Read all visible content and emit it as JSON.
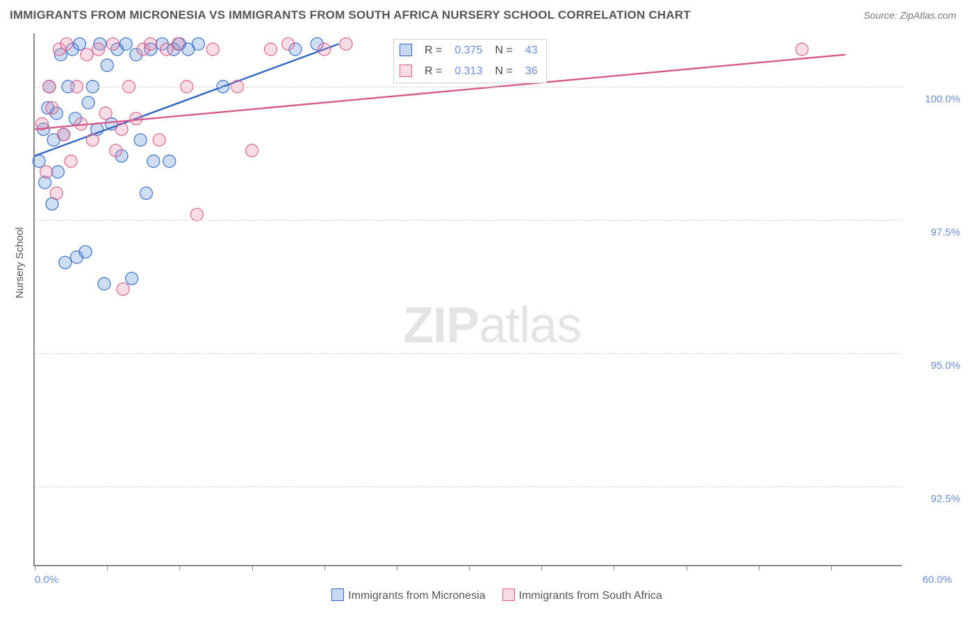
{
  "title": "IMMIGRANTS FROM MICRONESIA VS IMMIGRANTS FROM SOUTH AFRICA NURSERY SCHOOL CORRELATION CHART",
  "source": "Source: ZipAtlas.com",
  "ylabel": "Nursery School",
  "watermark_zip": "ZIP",
  "watermark_atlas": "atlas",
  "chart": {
    "type": "scatter",
    "xlim": [
      0,
      60
    ],
    "ylim": [
      91.0,
      101.0
    ],
    "xaxis_min_label": "0.0%",
    "xaxis_max_label": "60.0%",
    "yticks": [
      {
        "v": 92.5,
        "label": "92.5%"
      },
      {
        "v": 95.0,
        "label": "95.0%"
      },
      {
        "v": 97.5,
        "label": "97.5%"
      },
      {
        "v": 100.0,
        "label": "100.0%"
      }
    ],
    "xtick_positions": [
      0,
      5,
      10,
      15,
      20,
      25,
      30,
      35,
      40,
      45,
      50,
      55
    ],
    "background_color": "#ffffff",
    "grid_color": "#d8d8d8",
    "marker_radius": 9,
    "marker_fill_opacity": 0.3,
    "marker_stroke_opacity": 0.85,
    "marker_stroke_width": 1.3,
    "trend_line_width": 2.4,
    "series": [
      {
        "name": "Immigrants from Micronesia",
        "color": "#5b8fd6",
        "color_dark": "#2f66c4",
        "R": "0.375",
        "N": "43",
        "trend": {
          "x1": 0.0,
          "y1": 98.7,
          "x2": 21.0,
          "y2": 100.8
        },
        "points": [
          [
            0.3,
            98.6
          ],
          [
            0.6,
            99.2
          ],
          [
            0.7,
            98.2
          ],
          [
            0.9,
            99.6
          ],
          [
            1.0,
            100.0
          ],
          [
            1.2,
            97.8
          ],
          [
            1.3,
            99.0
          ],
          [
            1.5,
            99.5
          ],
          [
            1.6,
            98.4
          ],
          [
            1.8,
            100.6
          ],
          [
            2.0,
            99.1
          ],
          [
            2.1,
            96.7
          ],
          [
            2.3,
            100.0
          ],
          [
            2.6,
            100.7
          ],
          [
            2.8,
            99.4
          ],
          [
            2.9,
            96.8
          ],
          [
            3.1,
            100.8
          ],
          [
            3.5,
            96.9
          ],
          [
            3.7,
            99.7
          ],
          [
            4.0,
            100.0
          ],
          [
            4.3,
            99.2
          ],
          [
            4.5,
            100.8
          ],
          [
            4.8,
            96.3
          ],
          [
            5.0,
            100.4
          ],
          [
            5.3,
            99.3
          ],
          [
            5.7,
            100.7
          ],
          [
            6.0,
            98.7
          ],
          [
            6.3,
            100.8
          ],
          [
            6.7,
            96.4
          ],
          [
            7.0,
            100.6
          ],
          [
            7.3,
            99.0
          ],
          [
            7.7,
            98.0
          ],
          [
            8.0,
            100.7
          ],
          [
            8.2,
            98.6
          ],
          [
            8.8,
            100.8
          ],
          [
            9.3,
            98.6
          ],
          [
            9.6,
            100.7
          ],
          [
            10.0,
            100.8
          ],
          [
            10.6,
            100.7
          ],
          [
            11.3,
            100.8
          ],
          [
            13.0,
            100.0
          ],
          [
            18.0,
            100.7
          ],
          [
            19.5,
            100.8
          ]
        ]
      },
      {
        "name": "Immigrants from South Africa",
        "color": "#e98fb0",
        "color_dark": "#d65a8a",
        "R": "0.313",
        "N": "36",
        "trend": {
          "x1": 0.0,
          "y1": 99.2,
          "x2": 56.0,
          "y2": 100.6
        },
        "points": [
          [
            0.5,
            99.3
          ],
          [
            0.8,
            98.4
          ],
          [
            1.0,
            100.0
          ],
          [
            1.2,
            99.6
          ],
          [
            1.5,
            98.0
          ],
          [
            1.7,
            100.7
          ],
          [
            2.0,
            99.1
          ],
          [
            2.2,
            100.8
          ],
          [
            2.5,
            98.6
          ],
          [
            2.9,
            100.0
          ],
          [
            3.2,
            99.3
          ],
          [
            3.6,
            100.6
          ],
          [
            4.0,
            99.0
          ],
          [
            4.4,
            100.7
          ],
          [
            4.9,
            99.5
          ],
          [
            5.4,
            100.8
          ],
          [
            5.6,
            98.8
          ],
          [
            6.0,
            99.2
          ],
          [
            6.1,
            96.2
          ],
          [
            6.5,
            100.0
          ],
          [
            7.0,
            99.4
          ],
          [
            7.5,
            100.7
          ],
          [
            8.0,
            100.8
          ],
          [
            8.6,
            99.0
          ],
          [
            9.1,
            100.7
          ],
          [
            9.9,
            100.8
          ],
          [
            10.5,
            100.0
          ],
          [
            11.2,
            97.6
          ],
          [
            12.3,
            100.7
          ],
          [
            14.0,
            100.0
          ],
          [
            15.0,
            98.8
          ],
          [
            16.3,
            100.7
          ],
          [
            17.5,
            100.8
          ],
          [
            20.0,
            100.7
          ],
          [
            21.5,
            100.8
          ],
          [
            53.0,
            100.7
          ]
        ]
      }
    ]
  },
  "stats_labels": {
    "R": "R =",
    "N": "N ="
  },
  "legend": {
    "swatch_border_width": 1
  }
}
